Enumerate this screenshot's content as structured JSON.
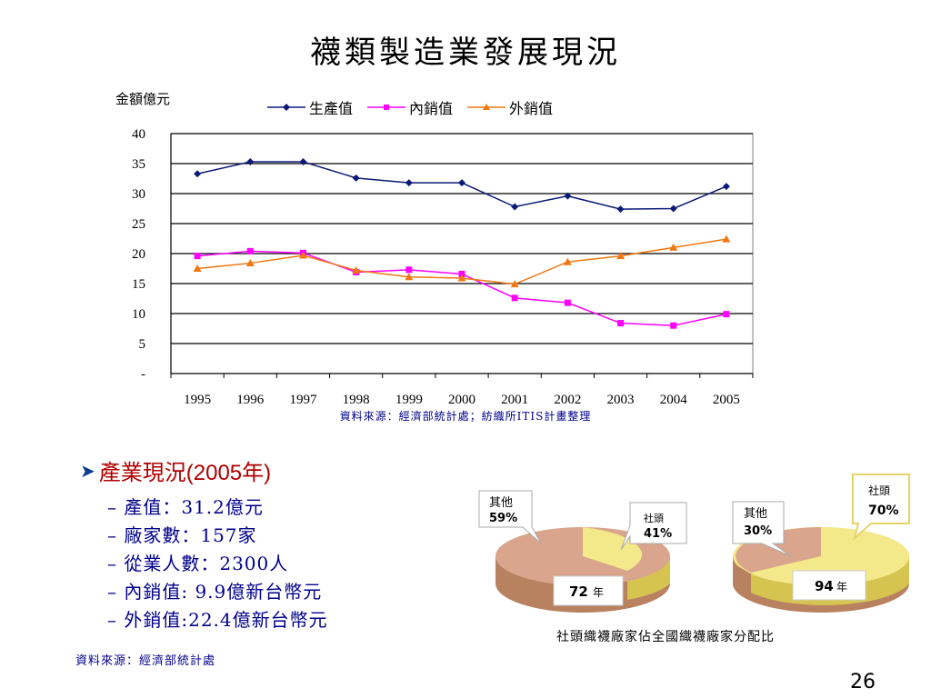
{
  "title": "襪類製造業發展現況",
  "chart_data": {
    "type": "line",
    "ylabel": "金額億元",
    "x": [
      "1995",
      "1996",
      "1997",
      "1998",
      "1999",
      "2000",
      "2001",
      "2002",
      "2003",
      "2004",
      "2005"
    ],
    "ylim": [
      0,
      40
    ],
    "yticks": [
      "-",
      "5",
      "10",
      "15",
      "20",
      "25",
      "30",
      "35",
      "40"
    ],
    "grid": true,
    "legend_position": "top",
    "series": [
      {
        "name": "生產值",
        "color": "#0b1a78",
        "marker": "diamond",
        "values": [
          33.3,
          35.3,
          35.3,
          32.6,
          31.8,
          31.8,
          27.8,
          29.6,
          27.4,
          27.5,
          31.2
        ]
      },
      {
        "name": "內銷值",
        "color": "#ff00ff",
        "marker": "square",
        "values": [
          19.6,
          20.4,
          20.1,
          16.9,
          17.3,
          16.6,
          12.6,
          11.8,
          8.4,
          8.0,
          9.9
        ]
      },
      {
        "name": "外銷值",
        "color": "#f07810",
        "marker": "triangle",
        "values": [
          17.5,
          18.4,
          19.7,
          17.2,
          16.1,
          15.9,
          14.9,
          18.6,
          19.6,
          21.0,
          22.4
        ]
      }
    ]
  },
  "chart_source": "資料來源：經濟部統計處；紡織所ITIS計畫整理",
  "status": {
    "heading_prefix": "產業現況",
    "heading_year": "(2005年)",
    "items": [
      "– 產值：31.2億元",
      "– 廠家數：157家",
      "– 從業人數：2300人",
      "– 內銷值: 9.9億新台幣元",
      "– 外銷值:22.4億新台幣元"
    ]
  },
  "status_source": "資料來源：經濟部統計處",
  "pies": {
    "caption": "社頭織襪廠家佔全國織襪廠家分配比",
    "pie1": {
      "year": "72",
      "year_suffix": "年",
      "slices": [
        {
          "label": "其他",
          "pct_text": "59%",
          "value": 59,
          "color": "#d9a58c"
        },
        {
          "label": "社頭",
          "pct_text": "41%",
          "value": 41,
          "color": "#f3e88a"
        }
      ]
    },
    "pie2": {
      "year": "94",
      "year_suffix": "年",
      "slices": [
        {
          "label": "其他",
          "pct_text": "30%",
          "value": 30,
          "color": "#d9a58c"
        },
        {
          "label": "社頭",
          "pct_text": "70%",
          "value": 70,
          "color": "#f3e88a"
        }
      ]
    }
  },
  "page_number": "26"
}
